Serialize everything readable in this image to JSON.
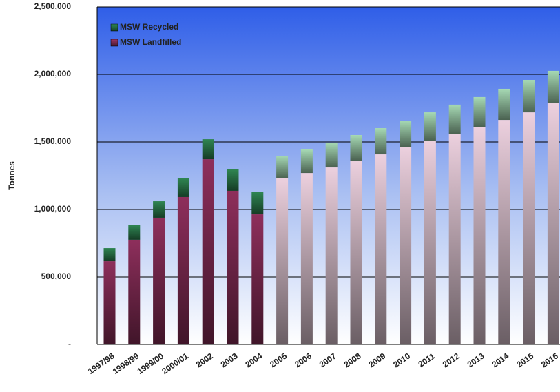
{
  "chart_data": {
    "type": "stacked-bar",
    "y_label": "Tonnes",
    "legend": "top-left",
    "grid": true,
    "categories": [
      "1997/98",
      "1998/99",
      "1999/00",
      "2000/01",
      "2002",
      "2003",
      "2004",
      "2005",
      "2006",
      "2007",
      "2008",
      "2009",
      "2010",
      "2011",
      "2012",
      "2013",
      "2014",
      "2015",
      "2016"
    ],
    "series": [
      {
        "name": "MSW Landfilled",
        "color": "#9b3566",
        "colors": [
          "#8e2f5c",
          "#8e2f5c",
          "#8e2f5c",
          "#8e2f5c",
          "#8e2f5c",
          "#8e2f5c",
          "#8e2f5c",
          "#ecd0de",
          "#ecd0de",
          "#ecd0de",
          "#ecd0de",
          "#ecd0de",
          "#ecd0de",
          "#ecd0de",
          "#ecd0de",
          "#ecd0de",
          "#ecd0de",
          "#ecd0de",
          "#ecd0de"
        ],
        "values": [
          617000,
          776000,
          939000,
          1092000,
          1372000,
          1138000,
          964000,
          1230000,
          1270000,
          1311000,
          1362000,
          1408000,
          1464000,
          1510000,
          1561000,
          1612000,
          1663000,
          1719000,
          1786000
        ]
      },
      {
        "name": "MSW Recycled",
        "color": "#2e8b57",
        "colors": [
          "#2f8552",
          "#2f8552",
          "#2f8552",
          "#2f8552",
          "#2f8552",
          "#2f8552",
          "#2f8552",
          "#a6d9b4",
          "#a6d9b4",
          "#a6d9b4",
          "#a6d9b4",
          "#a6d9b4",
          "#a6d9b4",
          "#a6d9b4",
          "#a6d9b4",
          "#a6d9b4",
          "#a6d9b4",
          "#a6d9b4",
          "#a6d9b4"
        ],
        "values": [
          97000,
          107000,
          122000,
          138000,
          148000,
          158000,
          164000,
          168000,
          174000,
          184000,
          189000,
          194000,
          194000,
          209000,
          215000,
          220000,
          230000,
          240000,
          240000
        ]
      }
    ],
    "ylim": [
      0,
      2500000
    ],
    "yticks": [
      {
        "value": 0,
        "label": "-"
      },
      {
        "value": 500000,
        "label": "500,000"
      },
      {
        "value": 1000000,
        "label": "1,000,000"
      },
      {
        "value": 1500000,
        "label": "1,500,000"
      },
      {
        "value": 2000000,
        "label": "2,000,000"
      },
      {
        "value": 2500000,
        "label": "2,500,000"
      }
    ]
  }
}
